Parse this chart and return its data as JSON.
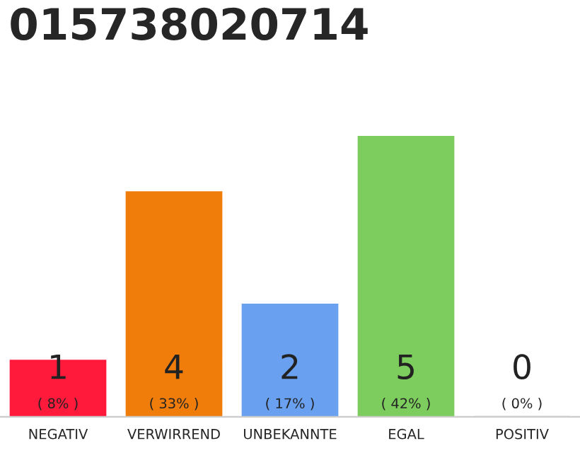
{
  "chart_data": {
    "type": "bar",
    "title": "015738020714",
    "categories": [
      "NEGATIV",
      "VERWIRREND",
      "UNBEKANNTE",
      "EGAL",
      "POSITIV"
    ],
    "values": [
      1,
      4,
      2,
      5,
      0
    ],
    "colors": [
      "#ff1a3c",
      "#f07d0a",
      "#6aa0f0",
      "#7dcc5e",
      "#bbbbbb"
    ],
    "value_labels": [
      "1\n( 8% )",
      "4\n( 33% )",
      "2\n( 17% )",
      "5\n( 42% )",
      "0\n( 0% )"
    ],
    "grid": false,
    "legend": false
  }
}
